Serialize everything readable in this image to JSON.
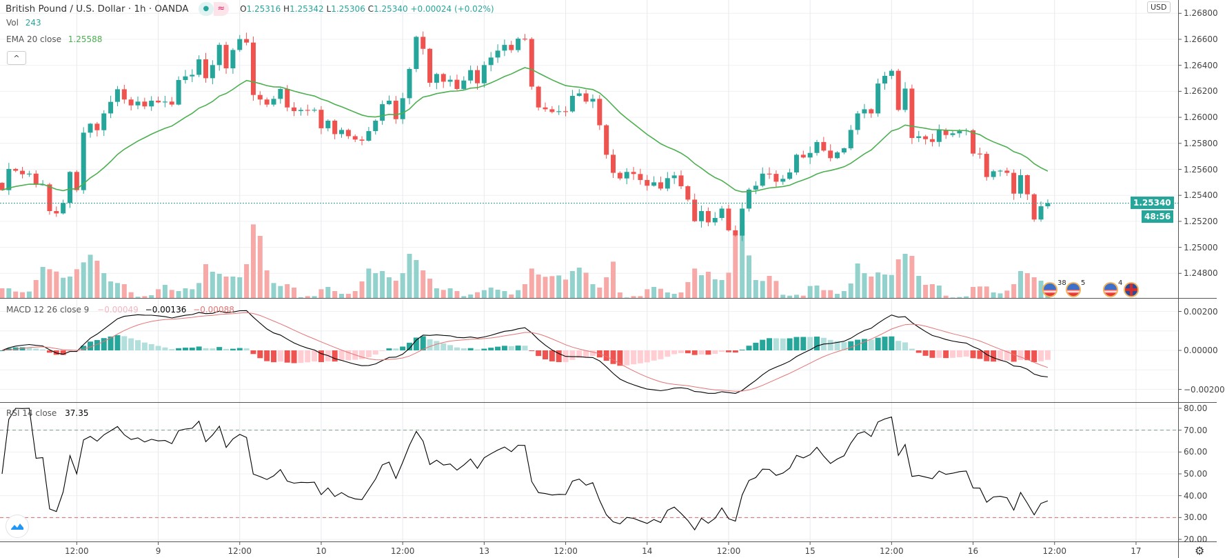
{
  "header": {
    "symbol": "British Pound / U.S. Dollar · 1h · OANDA",
    "status_dot": "●",
    "status_wave": "≈",
    "o_label": "O",
    "o": "1.25316",
    "h_label": "H",
    "h": "1.25342",
    "l_label": "L",
    "l": "1.25306",
    "c_label": "C",
    "c": "1.25340",
    "change": "+0.00024 (+0.02%)"
  },
  "legend": {
    "vol_label": "Vol",
    "vol_value": "243",
    "ema_label": "EMA 20 close",
    "ema_value": "1.25588",
    "collapse_icon": "^"
  },
  "macd_legend": {
    "label": "MACD 12 26 close 9",
    "hist": "−0.00049",
    "macd": "−0.00136",
    "signal": "−0.00088"
  },
  "rsi_legend": {
    "label": "RSI 14 close",
    "value": "37.35"
  },
  "price_axis": {
    "currency": "USD",
    "ticks": [
      "1.26800",
      "1.26600",
      "1.26400",
      "1.26200",
      "1.26000",
      "1.25800",
      "1.25600",
      "1.25400",
      "1.25200",
      "1.25000",
      "1.24800"
    ],
    "last_price": "1.25340",
    "countdown": "48:56"
  },
  "macd_axis": {
    "ticks": [
      "0.00200",
      "0.00000",
      "−0.00200"
    ]
  },
  "rsi_axis": {
    "ticks": [
      "80.00",
      "70.00",
      "60.00",
      "50.00",
      "40.00",
      "30.00",
      "20.00"
    ],
    "upper_band": 70,
    "lower_band": 30
  },
  "time_axis": {
    "labels": [
      "12:00",
      "9",
      "12:00",
      "10",
      "12:00",
      "13",
      "12:00",
      "14",
      "12:00",
      "15",
      "12:00",
      "16",
      "12:00",
      "17"
    ]
  },
  "events": [
    {
      "count": "38",
      "flag": "us"
    },
    {
      "count": "5",
      "flag": "us"
    },
    {
      "count": "4",
      "flag": "us"
    },
    {
      "count": "",
      "flag": "uk"
    }
  ],
  "colors": {
    "up": "#26a69a",
    "down": "#ef5350",
    "ema": "#4caf50",
    "macd": "#000000",
    "signal": "#e57373"
  },
  "chart_data": {
    "type": "candlestick",
    "title": "British Pound / U.S. Dollar · 1h · OANDA",
    "interval": "1h",
    "first_open": 1.25496,
    "close": [
      1.2544,
      1.25603,
      1.25589,
      1.25562,
      1.25567,
      1.25482,
      1.25484,
      1.25279,
      1.25261,
      1.25341,
      1.2558,
      1.2544,
      1.25882,
      1.25951,
      1.25901,
      1.2603,
      1.26119,
      1.26216,
      1.26137,
      1.26092,
      1.26121,
      1.26084,
      1.26128,
      1.26115,
      1.26121,
      1.26098,
      1.26287,
      1.26315,
      1.26327,
      1.26446,
      1.26301,
      1.26402,
      1.26557,
      1.26377,
      1.26518,
      1.26602,
      1.26575,
      1.26172,
      1.26137,
      1.26098,
      1.26142,
      1.26218,
      1.26076,
      1.26048,
      1.26057,
      1.26054,
      1.26058,
      1.25916,
      1.25974,
      1.25871,
      1.25903,
      1.25855,
      1.25829,
      1.2582,
      1.25894,
      1.25974,
      1.26101,
      1.26128,
      1.25986,
      1.26147,
      1.26372,
      1.26619,
      1.26527,
      1.26266,
      1.26333,
      1.26274,
      1.26289,
      1.26218,
      1.26283,
      1.26363,
      1.26262,
      1.26402,
      1.2646,
      1.26513,
      1.26557,
      1.26517,
      1.26605,
      1.26603,
      1.26236,
      1.26076,
      1.26062,
      1.26041,
      1.26047,
      1.26045,
      1.26165,
      1.26184,
      1.26121,
      1.26142,
      1.25939,
      1.25712,
      1.25573,
      1.2553,
      1.2558,
      1.25564,
      1.25518,
      1.25474,
      1.255,
      1.25452,
      1.25532,
      1.25553,
      1.2547,
      1.25367,
      1.25201,
      1.25279,
      1.25192,
      1.25226,
      1.25298,
      1.25131,
      1.2509,
      1.25298,
      1.25444,
      1.25474,
      1.25567,
      1.25565,
      1.25505,
      1.25527,
      1.25576,
      1.25712,
      1.25691,
      1.25726,
      1.2581,
      1.25744,
      1.25686,
      1.2573,
      1.25762,
      1.25903,
      1.2603,
      1.26062,
      1.2603,
      1.2626,
      1.26319,
      1.26358,
      1.26057,
      1.26221,
      1.25841,
      1.25854,
      1.25832,
      1.25811,
      1.25903,
      1.25864,
      1.25877,
      1.25894,
      1.259,
      1.25721,
      1.25719,
      1.25541,
      1.25585,
      1.2559,
      1.25573,
      1.25413,
      1.25555,
      1.25408,
      1.25214,
      1.25316,
      1.2534
    ],
    "volume": [
      420,
      420,
      280,
      250,
      280,
      780,
      1350,
      1250,
      1150,
      880,
      930,
      1250,
      1550,
      1880,
      1620,
      1080,
      720,
      650,
      600,
      250,
      50,
      80,
      120,
      380,
      570,
      350,
      300,
      420,
      380,
      650,
      1470,
      1140,
      1050,
      930,
      930,
      900,
      1470,
      3200,
      2700,
      1200,
      650,
      520,
      600,
      450,
      30,
      80,
      80,
      380,
      480,
      300,
      180,
      180,
      300,
      720,
      1280,
      1080,
      1170,
      900,
      750,
      1080,
      1920,
      1650,
      1200,
      840,
      420,
      350,
      420,
      300,
      80,
      150,
      250,
      340,
      450,
      360,
      300,
      150,
      340,
      600,
      1280,
      1020,
      920,
      950,
      980,
      800,
      1170,
      1320,
      1100,
      600,
      450,
      900,
      1580,
      240,
      20,
      80,
      80,
      380,
      480,
      400,
      240,
      180,
      240,
      690,
      1280,
      990,
      1140,
      810,
      780,
      1100,
      2700,
      3200,
      1850,
      780,
      740,
      960,
      740,
      140,
      100,
      140,
      100,
      520,
      540,
      340,
      340,
      180,
      300,
      630,
      1500,
      1080,
      930,
      1110,
      1020,
      1000,
      1680,
      1920,
      1830,
      960,
      570,
      600,
      540,
      100,
      20,
      40,
      70,
      480,
      500,
      500,
      240,
      200,
      320,
      600,
      1170,
      1080,
      900,
      750,
      243
    ],
    "price_range": [
      1.247,
      1.269
    ],
    "macd_range": [
      -0.0026,
      0.0028
    ],
    "rsi_range": [
      17,
      82
    ],
    "indicators": [
      "EMA 20 close",
      "MACD 12 26 close 9",
      "RSI 14 close"
    ]
  }
}
